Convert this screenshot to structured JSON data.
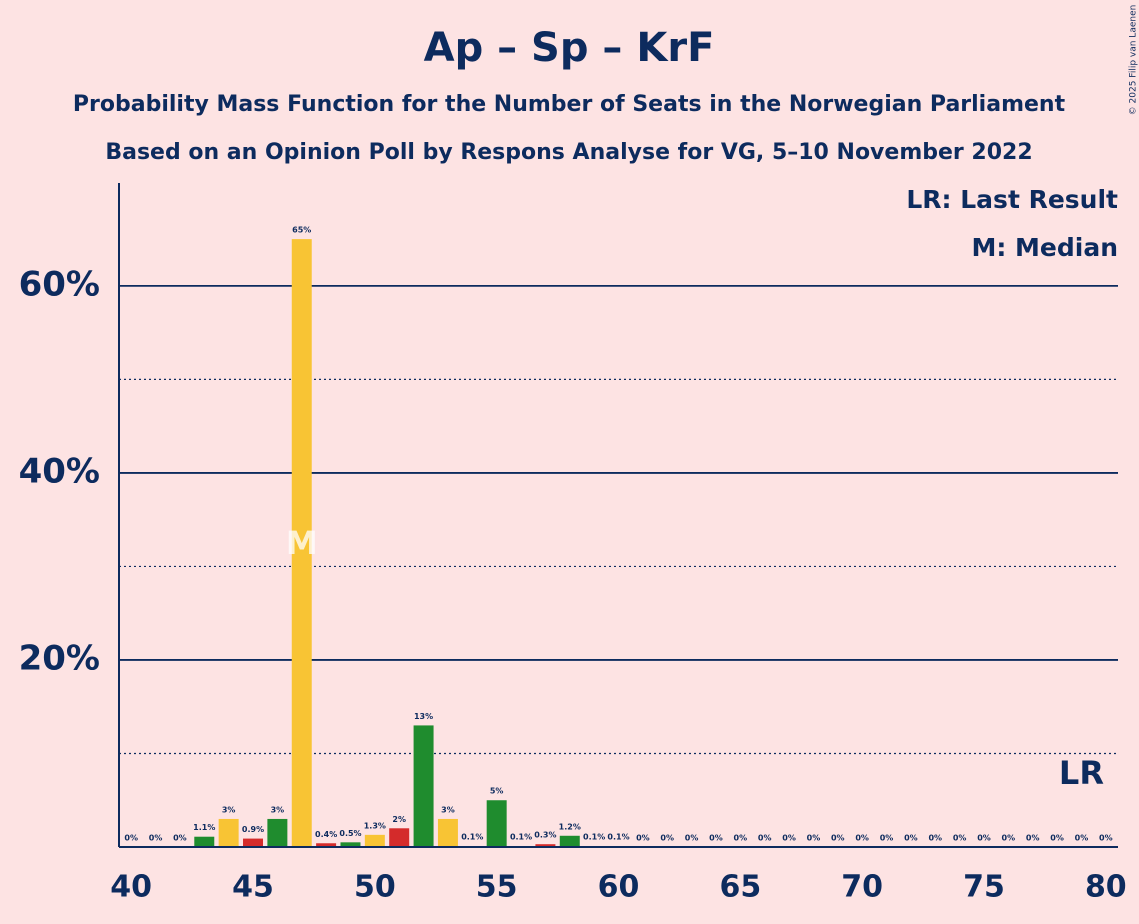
{
  "chart_data": {
    "type": "bar",
    "title": "Ap – Sp – KrF",
    "subtitle": [
      "Probability Mass Function for the Number of Seats in the Norwegian Parliament",
      "Based on an Opinion Poll by Respons Analyse for VG, 5–10 November 2022"
    ],
    "copyright": "© 2025 Filip van Laenen",
    "x": [
      40,
      41,
      42,
      43,
      44,
      45,
      46,
      47,
      48,
      49,
      50,
      51,
      52,
      53,
      54,
      55,
      56,
      57,
      58,
      59,
      60,
      61,
      62,
      63,
      64,
      65,
      66,
      67,
      68,
      69,
      70,
      71,
      72,
      73,
      74,
      75,
      76,
      77,
      78,
      79,
      80
    ],
    "values": [
      0,
      0,
      0,
      1.1,
      3,
      0.9,
      3,
      65,
      0.4,
      0.5,
      1.3,
      2,
      13,
      3,
      0.1,
      5,
      0.1,
      0.3,
      1.2,
      0.1,
      0.1,
      0,
      0,
      0,
      0,
      0,
      0,
      0,
      0,
      0,
      0,
      0,
      0,
      0,
      0,
      0,
      0,
      0,
      0,
      0,
      0
    ],
    "value_labels": [
      "0%",
      "0%",
      "0%",
      "1.1%",
      "3%",
      "0.9%",
      "3%",
      "65%",
      "0.4%",
      "0.5%",
      "1.3%",
      "2%",
      "13%",
      "3%",
      "0.1%",
      "5%",
      "0.1%",
      "0.3%",
      "1.2%",
      "0.1%",
      "0.1%",
      "0%",
      "0%",
      "0%",
      "0%",
      "0%",
      "0%",
      "0%",
      "0%",
      "0%",
      "0%",
      "0%",
      "0%",
      "0%",
      "0%",
      "0%",
      "0%",
      "0%",
      "0%",
      "0%",
      "0%"
    ],
    "colors": [
      "#1f8c2e",
      "#f8c434",
      "#d42b2b"
    ],
    "xlim": [
      39.5,
      80.5
    ],
    "xticks": [
      40,
      45,
      50,
      55,
      60,
      65,
      70,
      75,
      80
    ],
    "ylim": [
      0,
      71
    ],
    "yticks": [
      {
        "value": 20,
        "label": "20%"
      },
      {
        "value": 40,
        "label": "40%"
      },
      {
        "value": 60,
        "label": "60%"
      }
    ],
    "minor_yticks": [
      10,
      30,
      50
    ],
    "grid": true,
    "median": {
      "x": 47,
      "label": "M",
      "legend": "M: Median"
    },
    "last_result": {
      "x": 79,
      "label": "LR",
      "legend": "LR: Last Result"
    }
  }
}
